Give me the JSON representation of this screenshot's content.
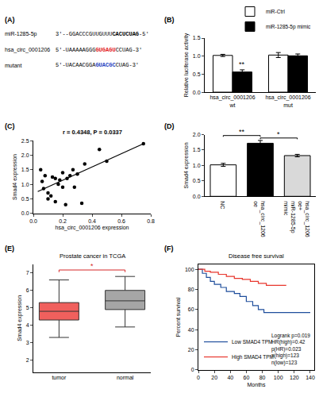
{
  "panel_a": {
    "label": "(A)",
    "rows": [
      {
        "name": "miR-1285-5p",
        "sequence": [
          {
            "text": "3'--GGACCCGUUGUUU"
          },
          {
            "text": "CACUCUAG",
            "bold": true
          },
          {
            "text": "-5'"
          }
        ]
      },
      {
        "name": "hsa_circ_0001206",
        "sequence": [
          {
            "text": "5'-UAAAAAGGG"
          },
          {
            "text": "GUGAGU",
            "bold": true,
            "color": "#e31a1c"
          },
          {
            "text": "CCUAG-3'"
          }
        ]
      },
      {
        "name": "mutant",
        "sequence": [
          {
            "text": "5'-UACAACGGA"
          },
          {
            "text": "GUACGC",
            "bold": true,
            "color": "#1f3fbf"
          },
          {
            "text": "CUAG-3'"
          }
        ]
      }
    ]
  },
  "chart_data": [
    {
      "label": "(B)",
      "type": "bar",
      "categories": [
        "hsa_circ_0001206 wt",
        "hsa_circ_0001206 mut"
      ],
      "series": [
        {
          "name": "miR-Ctrl",
          "color": "#ffffff",
          "values": [
            1.02,
            1.03
          ],
          "errors": [
            0.03,
            0.07
          ]
        },
        {
          "name": "miR-1285-5p mimic",
          "color": "#000000",
          "values": [
            0.56,
            1.01
          ],
          "errors": [
            0.06,
            0.05
          ]
        }
      ],
      "y_label": "Relative luciferase activity",
      "ylim": [
        0,
        1.5
      ],
      "yticks": [
        {
          "value": 0,
          "label": "0.0"
        },
        {
          "value": 0.5,
          "label": "0.5"
        },
        {
          "value": 1,
          "label": "1.0"
        },
        {
          "value": 1.5,
          "label": "1.5"
        }
      ],
      "legend": "upper right",
      "annotations": [
        {
          "text": "**",
          "category": 0,
          "series": 1
        }
      ]
    },
    {
      "label": "(C)",
      "type": "scatter",
      "title": "r = 0.4348, P = 0.0337",
      "x": [
        0.05,
        0.06,
        0.07,
        0.08,
        0.1,
        0.1,
        0.12,
        0.13,
        0.15,
        0.15,
        0.17,
        0.18,
        0.2,
        0.2,
        0.22,
        0.23,
        0.25,
        0.27,
        0.3,
        0.35,
        0.28,
        0.45,
        0.5,
        0.75,
        0.33
      ],
      "values": [
        1.5,
        1.1,
        0.85,
        1.3,
        0.7,
        0.5,
        0.6,
        1.25,
        1.2,
        0.4,
        1.0,
        1.15,
        1.4,
        0.9,
        0.3,
        1.2,
        1.3,
        1.5,
        1.35,
        1.7,
        0.9,
        2.2,
        1.8,
        2.4,
        0.35
      ],
      "trend_line": {
        "x": [
          0.03,
          0.75
        ],
        "values": [
          0.75,
          2.4
        ]
      },
      "color": "#000000",
      "x_label": "hsa_circ_0001206 expression",
      "y_label": "Smad4 expression",
      "xlim": [
        0,
        0.8
      ],
      "xticks": [
        {
          "value": 0,
          "label": "0.0"
        },
        {
          "value": 0.2,
          "label": "0.2"
        },
        {
          "value": 0.4,
          "label": "0.4"
        },
        {
          "value": 0.6,
          "label": "0.6"
        },
        {
          "value": 0.8,
          "label": "0.8"
        }
      ],
      "ylim": [
        0,
        2.5
      ],
      "yticks": [
        {
          "value": 0,
          "label": "0.0"
        },
        {
          "value": 0.5,
          "label": "0.5"
        },
        {
          "value": 1,
          "label": "1.0"
        },
        {
          "value": 1.5,
          "label": "1.5"
        },
        {
          "value": 2,
          "label": "2.0"
        },
        {
          "value": 2.5,
          "label": "2.5"
        }
      ]
    },
    {
      "label": "(D)",
      "type": "bar",
      "categories": [
        "NC",
        "hsa_circ_1206 oe",
        "hsa_circ_1206 oe+ miR-1285-5p mimic"
      ],
      "values": [
        1.02,
        1.72,
        1.32
      ],
      "errors": [
        0.05,
        0.09,
        0.04
      ],
      "colors": [
        "#ffffff",
        "#000000",
        "#d9d9d9"
      ],
      "y_label": "Smad4 expression",
      "ylim": [
        0,
        2
      ],
      "yticks": [
        {
          "value": 0,
          "label": "0.0"
        },
        {
          "value": 0.5,
          "label": "0.5"
        },
        {
          "value": 1,
          "label": "1.0"
        },
        {
          "value": 1.5,
          "label": "1.5"
        },
        {
          "value": 2,
          "label": "2.0"
        }
      ],
      "significance": [
        {
          "from": 0,
          "to": 1,
          "label": "**"
        },
        {
          "from": 1,
          "to": 2,
          "label": "*"
        }
      ]
    },
    {
      "label": "(E)",
      "type": "box",
      "title": "Prostate cancer in TCGA",
      "categories": [
        "tumor",
        "normal"
      ],
      "colors": [
        "#f0605d",
        "#a6a6a6"
      ],
      "boxes": {
        "lower": [
          3.3,
          3.9
        ],
        "q1": [
          4.3,
          4.9
        ],
        "median": [
          4.8,
          5.4
        ],
        "q3": [
          5.3,
          6.0
        ],
        "upper": [
          6.6,
          6.8
        ]
      },
      "y_label": "Smad4 expression",
      "ylim": [
        1.3,
        7.5
      ],
      "yticks": [
        2,
        3,
        4,
        5,
        6,
        7
      ],
      "significance": [
        {
          "from": 0,
          "to": 1,
          "label": "*"
        }
      ]
    },
    {
      "label": "(F)",
      "type": "line",
      "title": "Disease free survival",
      "line_style": "step",
      "series": [
        {
          "name": "Low SMAD4 TPM",
          "color": "#1f4e9c",
          "x": [
            0,
            5,
            10,
            15,
            20,
            28,
            35,
            45,
            52,
            60,
            68,
            75,
            82,
            140
          ],
          "values": [
            100,
            96,
            92,
            88,
            85,
            82,
            78,
            76,
            73,
            68,
            64,
            60,
            57,
            57
          ]
        },
        {
          "name": "High SMAD4 TPM",
          "color": "#e8362d",
          "x": [
            0,
            8,
            15,
            25,
            35,
            45,
            55,
            65,
            75,
            85,
            110
          ],
          "values": [
            100,
            98,
            97,
            95,
            93,
            91,
            90,
            88,
            86,
            84,
            84
          ]
        }
      ],
      "notes": [
        "Logrank p=0.019",
        "HR(high)=0.42",
        "p(HR)=0.023",
        "n(high)=123",
        "n(low)=123"
      ],
      "x_label": "Months",
      "y_label": "Percent survival",
      "xlim": [
        0,
        145
      ],
      "xticks": [
        0,
        20,
        40,
        60,
        80,
        100,
        120,
        140
      ],
      "ylim": [
        0,
        105
      ],
      "yticks": [
        0,
        20,
        40,
        60,
        80,
        100
      ],
      "legend": "lower left"
    }
  ]
}
